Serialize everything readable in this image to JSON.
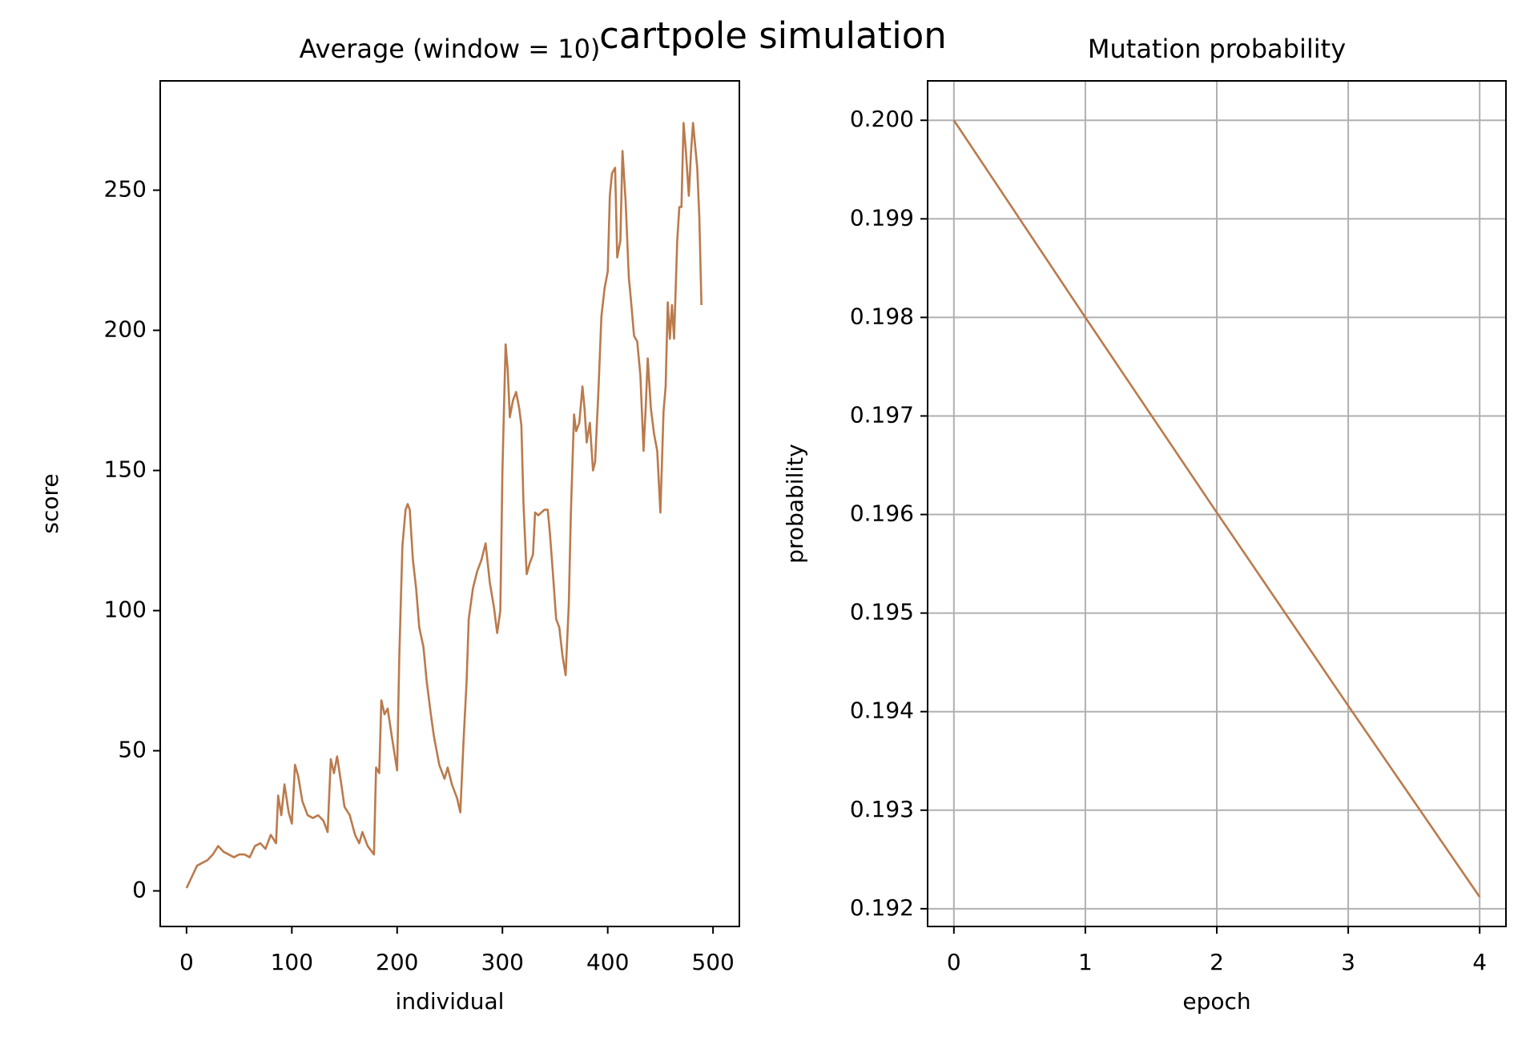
{
  "title": "cartpole simulation",
  "chart_data": [
    {
      "type": "line",
      "title": "Average (window = 10)",
      "xlabel": "individual",
      "ylabel": "score",
      "x": [
        0,
        5,
        10,
        15,
        20,
        25,
        30,
        35,
        40,
        45,
        50,
        55,
        60,
        65,
        70,
        75,
        80,
        85,
        87,
        90,
        93,
        97,
        100,
        103,
        106,
        110,
        115,
        120,
        125,
        130,
        134,
        137,
        140,
        143,
        147,
        150,
        155,
        160,
        164,
        167,
        172,
        178,
        180,
        183,
        185,
        188,
        191,
        195,
        200,
        202,
        205,
        208,
        210,
        212,
        215,
        218,
        221,
        225,
        228,
        232,
        235,
        240,
        245,
        248,
        252,
        257,
        260,
        263,
        266,
        268,
        272,
        276,
        280,
        284,
        288,
        292,
        295,
        298,
        300,
        303,
        305,
        307,
        310,
        313,
        316,
        318,
        320,
        323,
        326,
        329,
        331,
        334,
        337,
        340,
        343,
        345,
        348,
        351,
        354,
        357,
        360,
        363,
        365,
        368,
        370,
        373,
        376,
        378,
        380,
        383,
        386,
        388,
        391,
        394,
        397,
        400,
        402,
        404,
        407,
        409,
        412,
        414,
        417,
        420,
        422,
        425,
        428,
        431,
        434,
        436,
        438,
        441,
        444,
        447,
        450,
        453,
        455,
        457,
        459,
        461,
        463,
        466,
        468,
        470,
        472,
        474,
        477,
        479,
        481,
        483,
        485,
        487,
        489
      ],
      "values": [
        1,
        5,
        9,
        10,
        11,
        13,
        16,
        14,
        13,
        12,
        13,
        13,
        12,
        16,
        17,
        15,
        20,
        17,
        34,
        27,
        38,
        28,
        24,
        45,
        41,
        32,
        27,
        26,
        27,
        25,
        21,
        47,
        42,
        48,
        38,
        30,
        27,
        20,
        17,
        21,
        16,
        13,
        44,
        42,
        68,
        63,
        65,
        55,
        43,
        83,
        123,
        136,
        138,
        136,
        118,
        108,
        94,
        87,
        75,
        63,
        55,
        45,
        40,
        44,
        38,
        33,
        28,
        53,
        75,
        97,
        108,
        114,
        118,
        124,
        110,
        101,
        92,
        100,
        150,
        195,
        186,
        169,
        175,
        178,
        172,
        166,
        138,
        113,
        117,
        120,
        135,
        134,
        135,
        136,
        136,
        128,
        113,
        97,
        94,
        84,
        77,
        102,
        135,
        170,
        164,
        167,
        180,
        172,
        160,
        167,
        150,
        153,
        177,
        205,
        215,
        221,
        248,
        256,
        258,
        226,
        232,
        264,
        246,
        219,
        211,
        198,
        196,
        184,
        157,
        172,
        190,
        172,
        163,
        157,
        135,
        171,
        180,
        210,
        197,
        209,
        197,
        232,
        244,
        244,
        274,
        265,
        248,
        263,
        274,
        266,
        258,
        240,
        209
      ],
      "color": "#bb7a4c",
      "xlim": [
        -25,
        525
      ],
      "ylim": [
        -12.7,
        289
      ],
      "xticks": [
        0,
        100,
        200,
        300,
        400,
        500
      ],
      "yticks": [
        0,
        50,
        100,
        150,
        200,
        250
      ],
      "grid": false
    },
    {
      "type": "line",
      "title": "Mutation probability",
      "xlabel": "epoch",
      "ylabel": "probability",
      "x": [
        0,
        1,
        2,
        3,
        4
      ],
      "values": [
        0.2,
        0.198,
        0.19602,
        0.19406,
        0.19212
      ],
      "color": "#bb7a4c",
      "xlim": [
        -0.2,
        4.2
      ],
      "ylim": [
        0.19182,
        0.2004
      ],
      "xticks": [
        0,
        1,
        2,
        3,
        4
      ],
      "yticks": [
        0.192,
        0.193,
        0.194,
        0.195,
        0.196,
        0.197,
        0.198,
        0.199,
        {
          "value": 0.2,
          "label": "0.200"
        }
      ],
      "grid": true
    }
  ]
}
